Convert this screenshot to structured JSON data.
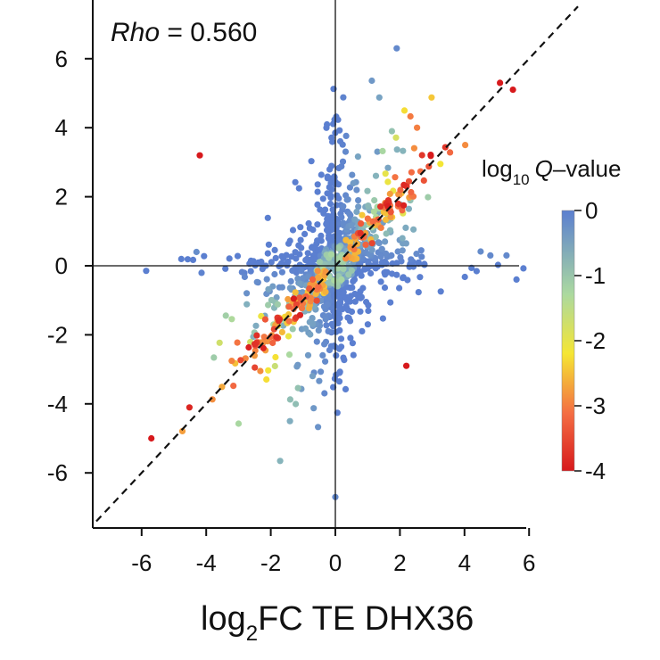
{
  "chart_data": {
    "type": "scatter",
    "xlabel": "log2FC TE DHX36",
    "xlabel_parts": {
      "pre": "log",
      "sub": "2",
      "post": "FC TE DHX36"
    },
    "ylabel": "",
    "annotation": {
      "label": "Rho",
      "text": " = 0.560",
      "value": 0.56
    },
    "x_ticks": [
      -6,
      -4,
      -2,
      0,
      2,
      4,
      6
    ],
    "y_ticks": [
      6,
      4,
      2,
      0,
      -2,
      -4,
      -6
    ],
    "xlim": [
      -7.5,
      6
    ],
    "ylim": [
      -7.5,
      7
    ],
    "reference_lines": [
      "x = 0",
      "y = 0",
      "y = x (dashed)"
    ],
    "colorbar": {
      "title_parts": {
        "pre": "log",
        "sub": "10",
        "italic": "Q",
        "post": "–value"
      },
      "ticks": [
        0,
        -1,
        -2,
        -3,
        -4
      ],
      "range": [
        -4,
        0
      ],
      "colors": [
        "#d7191c",
        "#fdae61",
        "#f5e634",
        "#abd9a0",
        "#5b8fd0"
      ]
    },
    "highlighted_points": [
      {
        "x": -4.2,
        "y": 3.2,
        "q": -4
      },
      {
        "x": -5.7,
        "y": -5.0,
        "q": -4
      },
      {
        "x": 5.1,
        "y": 5.3,
        "q": -4
      },
      {
        "x": 5.5,
        "y": 5.1,
        "q": -4
      },
      {
        "x": 1.9,
        "y": 6.3,
        "q": -0.2
      },
      {
        "x": 0.0,
        "y": -6.7,
        "q": -0.2
      },
      {
        "x": 5.3,
        "y": 0.3,
        "q": -0.2
      },
      {
        "x": 4.8,
        "y": 0.3,
        "q": -0.2
      },
      {
        "x": 2.2,
        "y": -2.9,
        "q": -4
      },
      {
        "x": -4.3,
        "y": 0.4,
        "q": -0.3
      }
    ],
    "point_cloud": {
      "description_series": "genes",
      "n_core": 900,
      "n_diagonal_significant": 170,
      "x_range": [
        -6,
        6
      ],
      "y_range": [
        -7,
        7
      ]
    }
  },
  "colors": {
    "axis": "#111111",
    "dash": "#111111",
    "background": "#ffffff"
  }
}
